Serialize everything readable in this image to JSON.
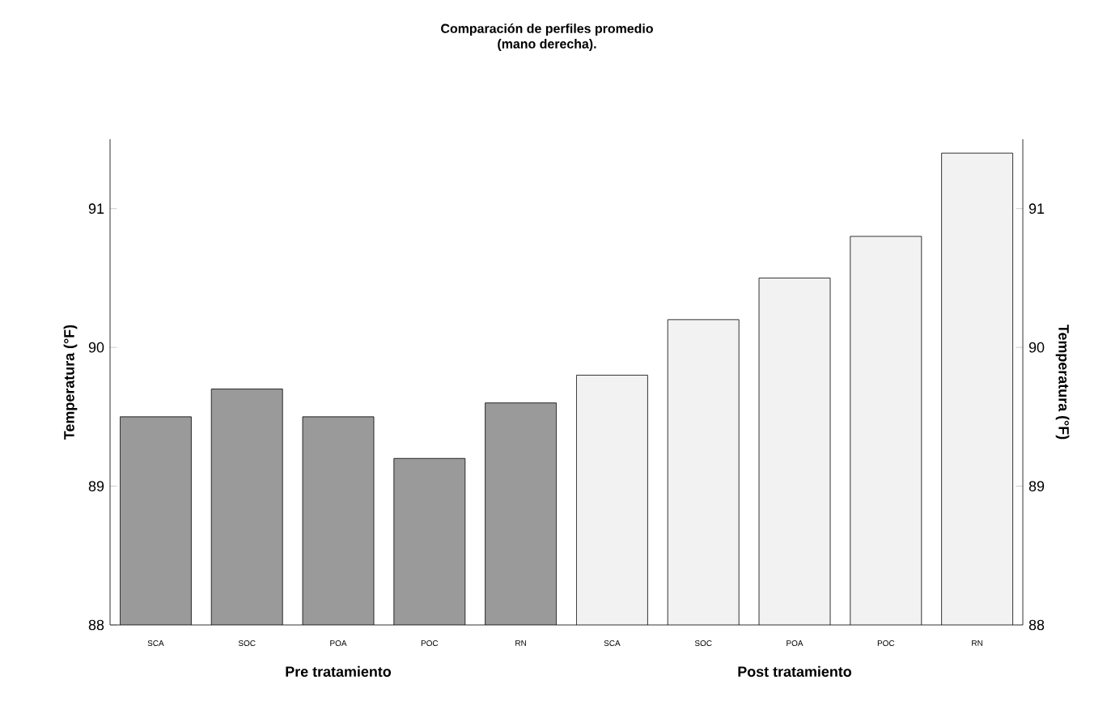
{
  "chart_data": {
    "type": "bar",
    "title": "Comparación de perfiles promedio",
    "subtitle": "(mano derecha).",
    "ylabel": "Temperatura (°F)",
    "y2label": "Temperatura (°F)",
    "categories": [
      "SCA",
      "SOC",
      "POA",
      "POC",
      "RN",
      "SCA",
      "SOC",
      "POA",
      "POC",
      "RN"
    ],
    "values": [
      89.5,
      89.7,
      89.5,
      89.2,
      89.6,
      89.8,
      90.2,
      90.5,
      90.8,
      91.4
    ],
    "colors": [
      "#9a9a9a",
      "#9a9a9a",
      "#9a9a9a",
      "#9a9a9a",
      "#9a9a9a",
      "#f2f2f2",
      "#f2f2f2",
      "#f2f2f2",
      "#f2f2f2",
      "#f2f2f2"
    ],
    "annotations": [
      "Pre tratamiento",
      "Post tratamiento"
    ],
    "ylim": [
      88,
      91.5
    ],
    "yticks": [
      88,
      89,
      90,
      91
    ],
    "y2lim": [
      88,
      91.5
    ],
    "y2ticks": [
      88,
      89,
      90,
      91
    ]
  }
}
